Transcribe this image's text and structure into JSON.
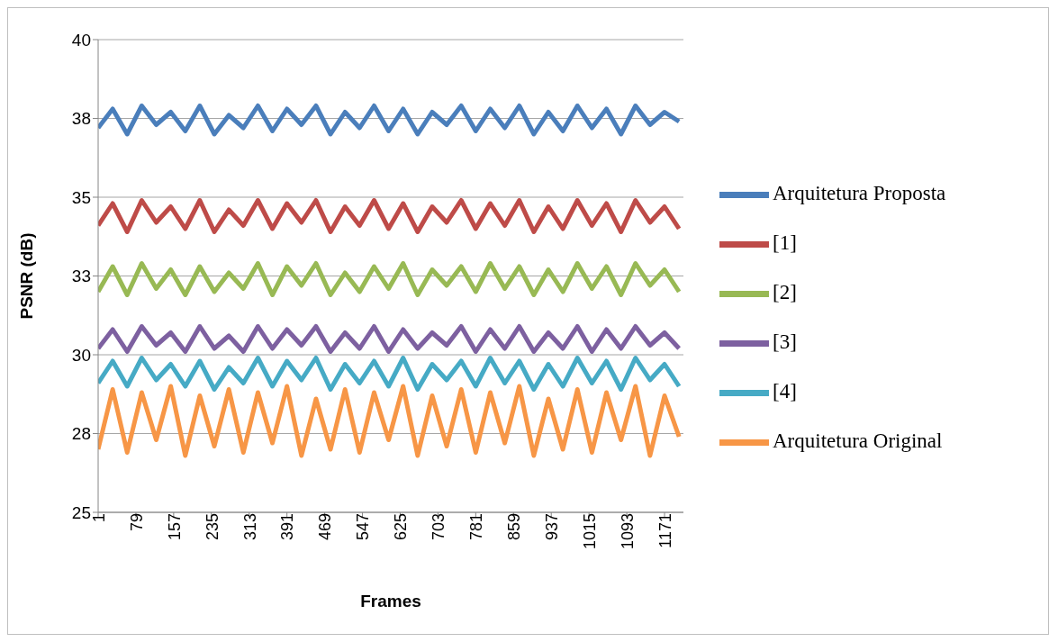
{
  "chart_data": {
    "type": "line",
    "xlabel": "Frames",
    "ylabel": "PSNR (dB)",
    "x": [
      1,
      31,
      61,
      91,
      121,
      151,
      181,
      211,
      241,
      271,
      301,
      331,
      361,
      391,
      421,
      451,
      481,
      511,
      541,
      571,
      601,
      631,
      661,
      691,
      721,
      751,
      781,
      811,
      841,
      871,
      901,
      931,
      961,
      991,
      1021,
      1051,
      1081,
      1111,
      1141,
      1171,
      1201
    ],
    "xlim": [
      1,
      1210
    ],
    "xticks": [
      1,
      79,
      157,
      235,
      313,
      391,
      469,
      547,
      625,
      703,
      781,
      859,
      937,
      1015,
      1093,
      1171
    ],
    "ylim": [
      25,
      40
    ],
    "yticks": [
      25,
      {
        "value": 27.5,
        "label": "28"
      },
      30,
      {
        "value": 32.5,
        "label": "33"
      },
      35,
      {
        "value": 37.5,
        "label": "38"
      },
      40
    ],
    "grid": "y",
    "legend": "right",
    "marker": "none",
    "line_style": "solid",
    "series": [
      {
        "name": "Arquitetura Proposta",
        "color": "#4a7ebb",
        "values": [
          37.2,
          37.8,
          37.0,
          37.9,
          37.3,
          37.7,
          37.1,
          37.9,
          37.0,
          37.6,
          37.2,
          37.9,
          37.1,
          37.8,
          37.3,
          37.9,
          37.0,
          37.7,
          37.2,
          37.9,
          37.1,
          37.8,
          37.0,
          37.7,
          37.3,
          37.9,
          37.1,
          37.8,
          37.2,
          37.9,
          37.0,
          37.7,
          37.1,
          37.9,
          37.2,
          37.8,
          37.0,
          37.9,
          37.3,
          37.7,
          37.4
        ]
      },
      {
        "name": "[1]",
        "color": "#be4b48",
        "values": [
          34.1,
          34.8,
          33.9,
          34.9,
          34.2,
          34.7,
          34.0,
          34.9,
          33.9,
          34.6,
          34.1,
          34.9,
          34.0,
          34.8,
          34.2,
          34.9,
          33.9,
          34.7,
          34.1,
          34.9,
          34.0,
          34.8,
          33.9,
          34.7,
          34.2,
          34.9,
          34.0,
          34.8,
          34.1,
          34.9,
          33.9,
          34.7,
          34.0,
          34.9,
          34.1,
          34.8,
          33.9,
          34.9,
          34.2,
          34.7,
          34.0
        ]
      },
      {
        "name": "[2]",
        "color": "#98b954",
        "values": [
          32.0,
          32.8,
          31.9,
          32.9,
          32.1,
          32.7,
          31.9,
          32.8,
          32.0,
          32.6,
          32.1,
          32.9,
          31.9,
          32.8,
          32.2,
          32.9,
          31.9,
          32.6,
          32.0,
          32.8,
          32.1,
          32.9,
          31.9,
          32.7,
          32.2,
          32.8,
          32.0,
          32.9,
          32.1,
          32.8,
          31.9,
          32.7,
          32.0,
          32.9,
          32.1,
          32.8,
          31.9,
          32.9,
          32.2,
          32.7,
          32.0
        ]
      },
      {
        "name": "[3]",
        "color": "#7d60a0",
        "values": [
          30.2,
          30.8,
          30.1,
          30.9,
          30.3,
          30.7,
          30.1,
          30.9,
          30.2,
          30.6,
          30.1,
          30.9,
          30.2,
          30.8,
          30.3,
          30.9,
          30.1,
          30.7,
          30.2,
          30.9,
          30.1,
          30.8,
          30.2,
          30.7,
          30.3,
          30.9,
          30.1,
          30.8,
          30.2,
          30.9,
          30.1,
          30.7,
          30.2,
          30.9,
          30.1,
          30.8,
          30.2,
          30.9,
          30.3,
          30.7,
          30.2
        ]
      },
      {
        "name": "[4]",
        "color": "#46aac5",
        "values": [
          29.1,
          29.8,
          29.0,
          29.9,
          29.2,
          29.7,
          29.0,
          29.8,
          28.9,
          29.6,
          29.1,
          29.9,
          29.0,
          29.8,
          29.2,
          29.9,
          28.9,
          29.7,
          29.1,
          29.8,
          29.0,
          29.9,
          28.9,
          29.7,
          29.2,
          29.8,
          29.0,
          29.9,
          29.1,
          29.8,
          28.9,
          29.7,
          29.0,
          29.9,
          29.1,
          29.8,
          28.9,
          29.9,
          29.2,
          29.7,
          29.0
        ]
      },
      {
        "name": "Arquitetura Original",
        "color": "#f79646",
        "values": [
          27.0,
          28.9,
          26.9,
          28.8,
          27.3,
          29.0,
          26.8,
          28.7,
          27.1,
          28.9,
          26.9,
          28.8,
          27.2,
          29.0,
          26.8,
          28.6,
          27.0,
          28.9,
          26.9,
          28.8,
          27.3,
          29.0,
          26.8,
          28.7,
          27.1,
          28.9,
          26.9,
          28.8,
          27.2,
          29.0,
          26.8,
          28.6,
          27.0,
          28.9,
          26.9,
          28.8,
          27.3,
          29.0,
          26.8,
          28.7,
          27.4
        ]
      }
    ]
  }
}
